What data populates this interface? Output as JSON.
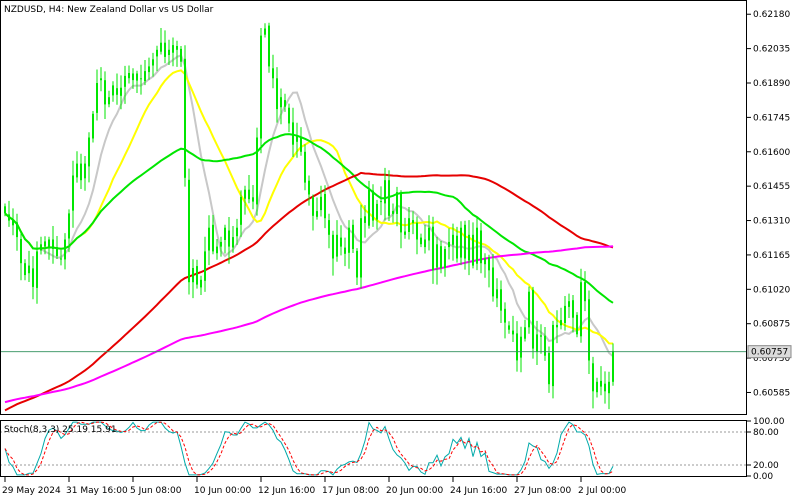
{
  "chart_data": [
    {
      "type": "candlestick",
      "title": "NZDUSD, H4:  New Zealand Dollar vs US Dollar",
      "symbol": "NZDUSD",
      "timeframe": "H4",
      "ylim": [
        0.6049,
        0.6224
      ],
      "y_ticks": [
        "0.62180",
        "0.62035",
        "0.61890",
        "0.61745",
        "0.61600",
        "0.61455",
        "0.61310",
        "0.61165",
        "0.61020",
        "0.60875",
        "0.60730",
        "0.60585"
      ],
      "y_tick_values": [
        0.6218,
        0.62035,
        0.6189,
        0.61745,
        0.616,
        0.61455,
        0.6131,
        0.61165,
        0.6102,
        0.60875,
        0.6073,
        0.60585
      ],
      "x_ticks": [
        "29 May 2024",
        "31 May 16:00",
        "5 Jun 08:00",
        "10 Jun 00:00",
        "12 Jun 16:00",
        "17 Jun 08:00",
        "20 Jun 00:00",
        "24 Jun 16:00",
        "27 Jun 08:00",
        "2 Jul 00:00"
      ],
      "x_tick_bar_index": [
        0,
        16,
        32,
        48,
        64,
        80,
        96,
        112,
        128,
        144
      ],
      "current_price": {
        "value": 0.60757,
        "label": "0.60757"
      },
      "candle_color": "#00e600",
      "closes": [
        0.6134,
        0.6131,
        0.6129,
        0.6124,
        0.6113,
        0.6108,
        0.6112,
        0.6103,
        0.6118,
        0.6121,
        0.612,
        0.6123,
        0.6119,
        0.6116,
        0.6115,
        0.6123,
        0.6134,
        0.615,
        0.6155,
        0.6148,
        0.6155,
        0.6166,
        0.6176,
        0.6189,
        0.6191,
        0.618,
        0.6183,
        0.6188,
        0.6184,
        0.6187,
        0.6192,
        0.6191,
        0.6193,
        0.619,
        0.6191,
        0.6194,
        0.6196,
        0.6199,
        0.6203,
        0.6206,
        0.62,
        0.6203,
        0.6205,
        0.6203,
        0.6198,
        0.6149,
        0.6105,
        0.6111,
        0.6104,
        0.6106,
        0.6118,
        0.6128,
        0.6118,
        0.612,
        0.6122,
        0.6128,
        0.612,
        0.6124,
        0.6128,
        0.6141,
        0.6144,
        0.614,
        0.6139,
        0.6166,
        0.6209,
        0.6212,
        0.6196,
        0.6191,
        0.6178,
        0.6183,
        0.6179,
        0.6172,
        0.6163,
        0.6167,
        0.616,
        0.6147,
        0.6142,
        0.6133,
        0.6135,
        0.6141,
        0.6132,
        0.6125,
        0.6115,
        0.6125,
        0.612,
        0.6117,
        0.6128,
        0.6119,
        0.6107,
        0.6132,
        0.613,
        0.6144,
        0.6131,
        0.6138,
        0.6139,
        0.6148,
        0.6133,
        0.6135,
        0.6143,
        0.6126,
        0.6125,
        0.6132,
        0.613,
        0.6123,
        0.6121,
        0.6123,
        0.6128,
        0.611,
        0.6121,
        0.6111,
        0.6119,
        0.6122,
        0.6125,
        0.6115,
        0.6128,
        0.6115,
        0.6125,
        0.6112,
        0.6128,
        0.6113,
        0.6115,
        0.611,
        0.6099,
        0.6102,
        0.6093,
        0.6088,
        0.6085,
        0.6083,
        0.6072,
        0.6082,
        0.6086,
        0.6101,
        0.6077,
        0.6083,
        0.6082,
        0.6074,
        0.6062,
        0.6087,
        0.6086,
        0.6089,
        0.6095,
        0.6097,
        0.609,
        0.6083,
        0.6105,
        0.6097,
        0.6072,
        0.6059,
        0.6063,
        0.6061,
        0.6059,
        0.6063,
        0.6076
      ],
      "moving_averages": [
        {
          "type": "SMA",
          "period": 10,
          "color": "#c8c8c8"
        },
        {
          "type": "SMA",
          "period": 20,
          "color": "#ffff00"
        },
        {
          "type": "SMA",
          "period": 50,
          "color": "#00e600"
        },
        {
          "type": "SMA",
          "period": 100,
          "color": "#e60000"
        },
        {
          "type": "SMA",
          "period": 200,
          "color": "#ff00ff"
        }
      ],
      "grid": false
    },
    {
      "type": "line",
      "indicator": "Stochastic",
      "title": "Stoch(8,3,3) 25.19 15.91",
      "ylim": [
        0,
        100
      ],
      "y_ticks": [
        "100.00",
        "80.00",
        "20.00",
        "0.00"
      ],
      "y_tick_values": [
        100,
        80,
        20,
        0
      ],
      "levels": [
        80,
        20
      ],
      "series": [
        {
          "name": "main",
          "color": "#00aaaa",
          "style": "solid"
        },
        {
          "name": "signal",
          "color": "#ff0000",
          "style": "dashed"
        }
      ]
    }
  ]
}
